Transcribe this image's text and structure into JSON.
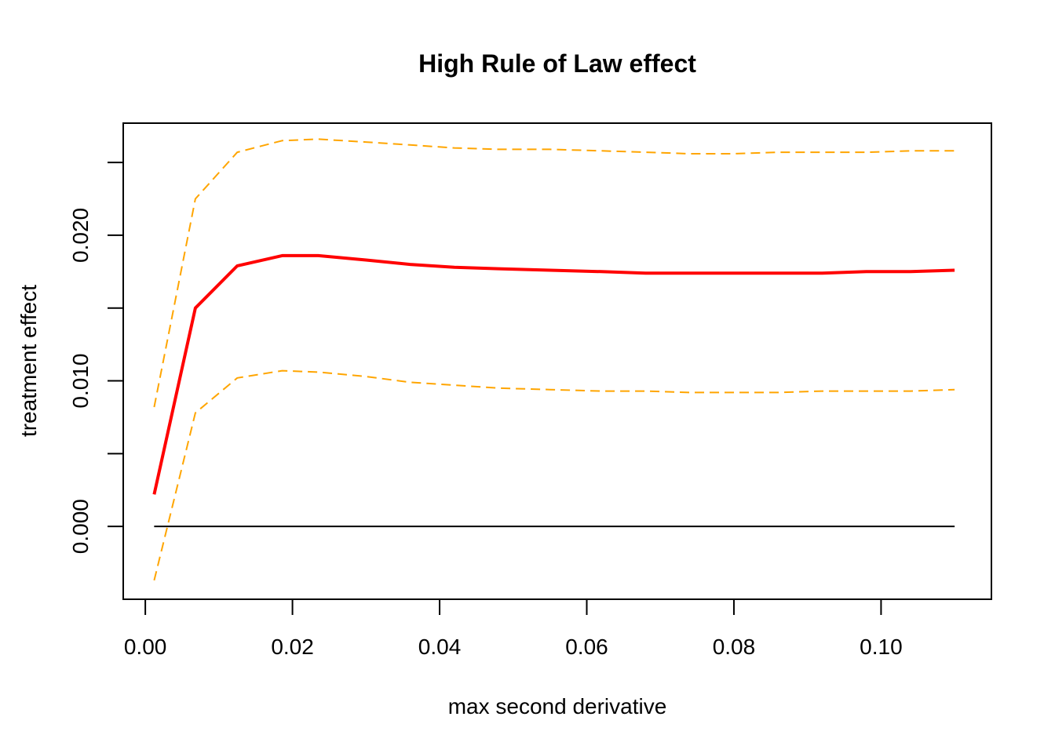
{
  "chart_data": {
    "type": "line",
    "title": "High Rule of Law effect",
    "xlabel": "max second derivative",
    "ylabel": "treatment effect",
    "xlim": [
      -0.003,
      0.115
    ],
    "ylim": [
      -0.005,
      0.0277
    ],
    "x_ticks": [
      0.0,
      0.02,
      0.04,
      0.06,
      0.08,
      0.1
    ],
    "x_tick_labels": [
      "0.00",
      "0.02",
      "0.04",
      "0.06",
      "0.08",
      "0.10"
    ],
    "y_ticks": [
      0.0,
      0.005,
      0.01,
      0.015,
      0.02,
      0.025
    ],
    "y_tick_labels": [
      "0.000",
      "",
      "0.010",
      "",
      "0.020",
      ""
    ],
    "grid": false,
    "x": [
      0.0012,
      0.0068,
      0.0125,
      0.0186,
      0.0235,
      0.03,
      0.036,
      0.042,
      0.048,
      0.055,
      0.062,
      0.068,
      0.074,
      0.08,
      0.086,
      0.092,
      0.098,
      0.104,
      0.11
    ],
    "series": [
      {
        "role": "estimate",
        "color": "#ff0000",
        "style": "solid",
        "values": [
          0.0022,
          0.015,
          0.0179,
          0.0186,
          0.0186,
          0.0183,
          0.018,
          0.0178,
          0.0177,
          0.0176,
          0.0175,
          0.0174,
          0.0174,
          0.0174,
          0.0174,
          0.0174,
          0.0175,
          0.0175,
          0.0176
        ]
      },
      {
        "role": "upper-bound",
        "color": "#ffa500",
        "style": "dashed",
        "values": [
          0.0082,
          0.0225,
          0.0257,
          0.0265,
          0.0266,
          0.0264,
          0.0262,
          0.026,
          0.0259,
          0.0259,
          0.0258,
          0.0257,
          0.0256,
          0.0256,
          0.0257,
          0.0257,
          0.0257,
          0.0258,
          0.0258
        ]
      },
      {
        "role": "lower-bound",
        "color": "#ffa500",
        "style": "dashed",
        "values": [
          -0.0037,
          0.0078,
          0.0102,
          0.0107,
          0.0106,
          0.0103,
          0.0099,
          0.0097,
          0.0095,
          0.0094,
          0.0093,
          0.0093,
          0.0092,
          0.0092,
          0.0092,
          0.0093,
          0.0093,
          0.0093,
          0.0094
        ]
      }
    ],
    "reference_line": {
      "y": 0.0,
      "x_from": 0.0012,
      "x_to": 0.11,
      "color": "#000000"
    }
  }
}
